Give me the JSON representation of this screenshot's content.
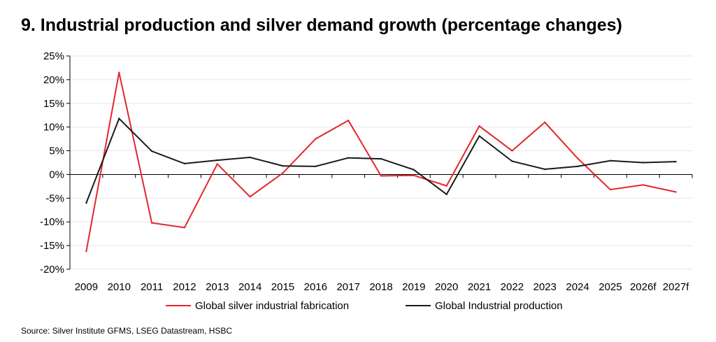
{
  "title": "9. Industrial production and silver demand growth (percentage changes)",
  "source": "Source: Silver Institute GFMS, LSEG Datastream, HSBC",
  "chart_data": {
    "type": "line",
    "title": "9. Industrial production and silver demand growth (percentage changes)",
    "xlabel": "",
    "ylabel": "",
    "categories": [
      "2009",
      "2010",
      "2011",
      "2012",
      "2013",
      "2014",
      "2015",
      "2016",
      "2017",
      "2018",
      "2019",
      "2020",
      "2021",
      "2022",
      "2023",
      "2024",
      "2025",
      "2026f",
      "2027f"
    ],
    "y_ticks": [
      "25%",
      "20%",
      "15%",
      "10%",
      "5%",
      "0%",
      "-5%",
      "-10%",
      "-15%",
      "-20%"
    ],
    "ylim": [
      -20,
      25
    ],
    "y_unit": "%",
    "grid": true,
    "legend_position": "bottom",
    "series": [
      {
        "name": "Global silver industrial fabrication",
        "color": "#e3262f",
        "values": [
          -16.2,
          21.5,
          -10.2,
          -11.2,
          2.2,
          -4.7,
          0.3,
          7.5,
          11.4,
          -0.3,
          -0.2,
          -2.4,
          10.2,
          5.0,
          11.0,
          3.4,
          -3.2,
          -2.2,
          -3.7
        ]
      },
      {
        "name": "Global Industrial production",
        "color": "#1a1a1a",
        "values": [
          -6.0,
          11.8,
          4.9,
          2.3,
          3.0,
          3.6,
          1.8,
          1.7,
          3.5,
          3.3,
          1.0,
          -4.2,
          8.1,
          2.8,
          1.1,
          1.7,
          2.9,
          2.5,
          2.7
        ]
      }
    ]
  }
}
